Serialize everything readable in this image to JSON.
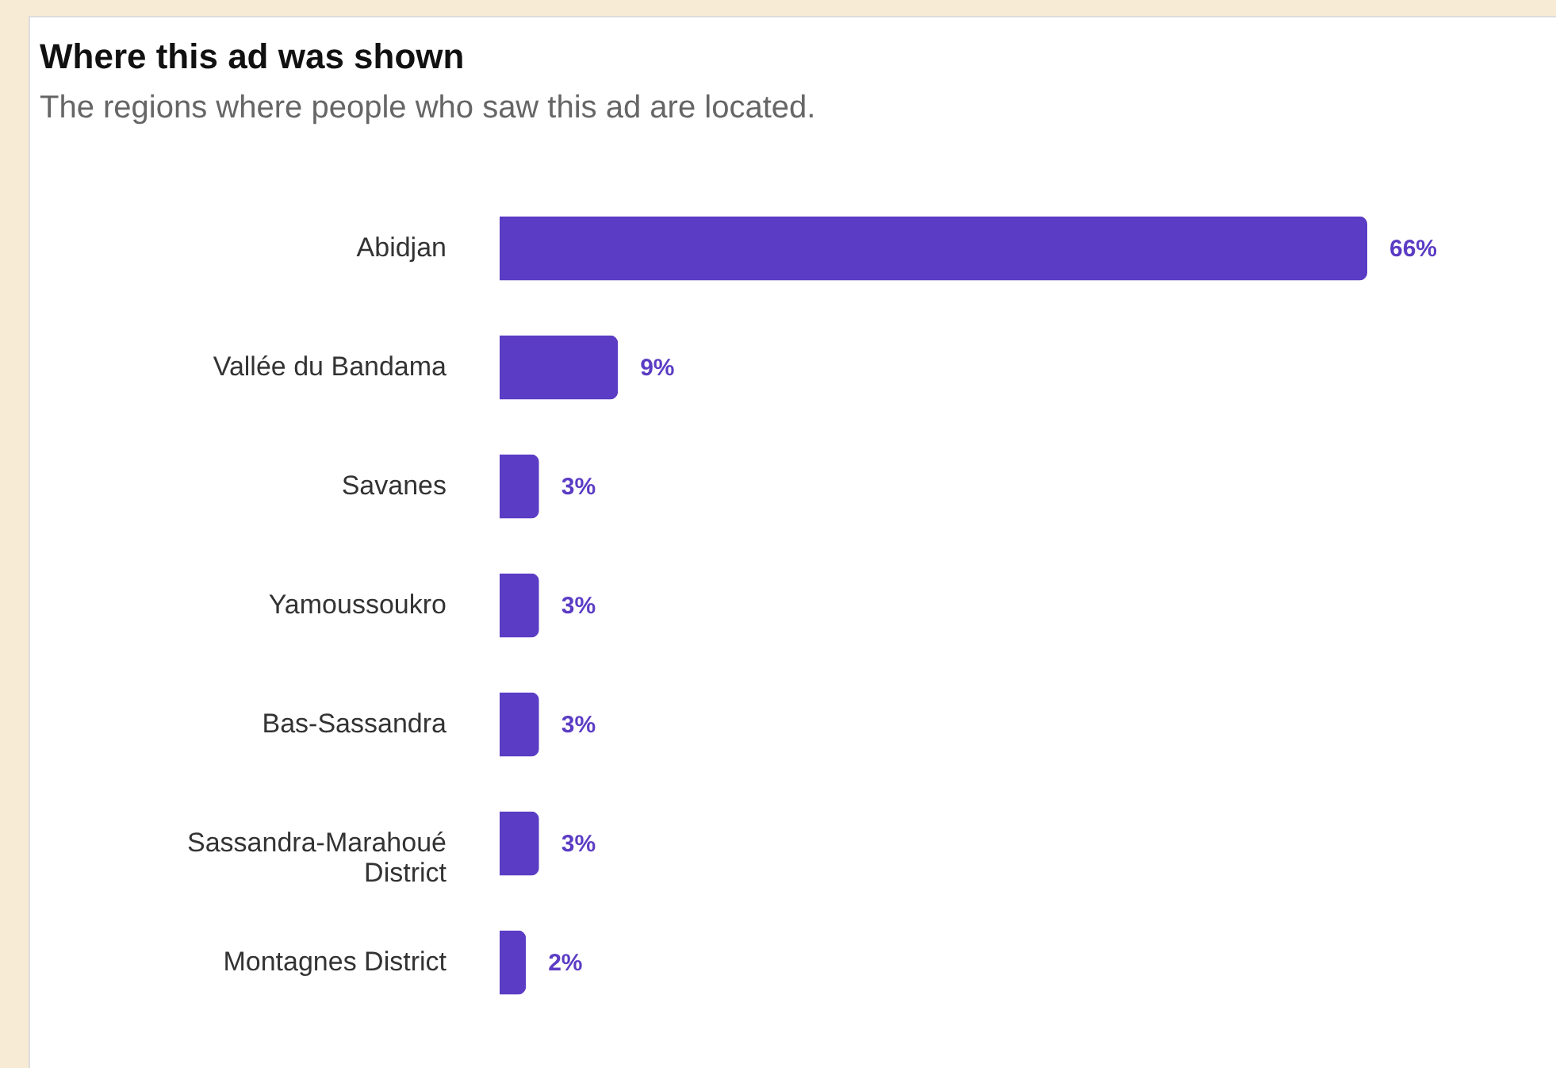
{
  "chart_data": {
    "type": "bar",
    "orientation": "horizontal",
    "title": "Where this ad was shown",
    "subtitle": "The regions where people who saw this ad are located.",
    "categories": [
      "Abidjan",
      "Vallée du Bandama",
      "Savanes",
      "Yamoussoukro",
      "Bas-Sassandra",
      "Sassandra-Marahoué District",
      "Montagnes District"
    ],
    "values": [
      66,
      9,
      3,
      3,
      3,
      3,
      2
    ],
    "value_labels": [
      "66%",
      "9%",
      "3%",
      "3%",
      "3%",
      "3%",
      "2%"
    ],
    "color": "#5b3cc4"
  }
}
